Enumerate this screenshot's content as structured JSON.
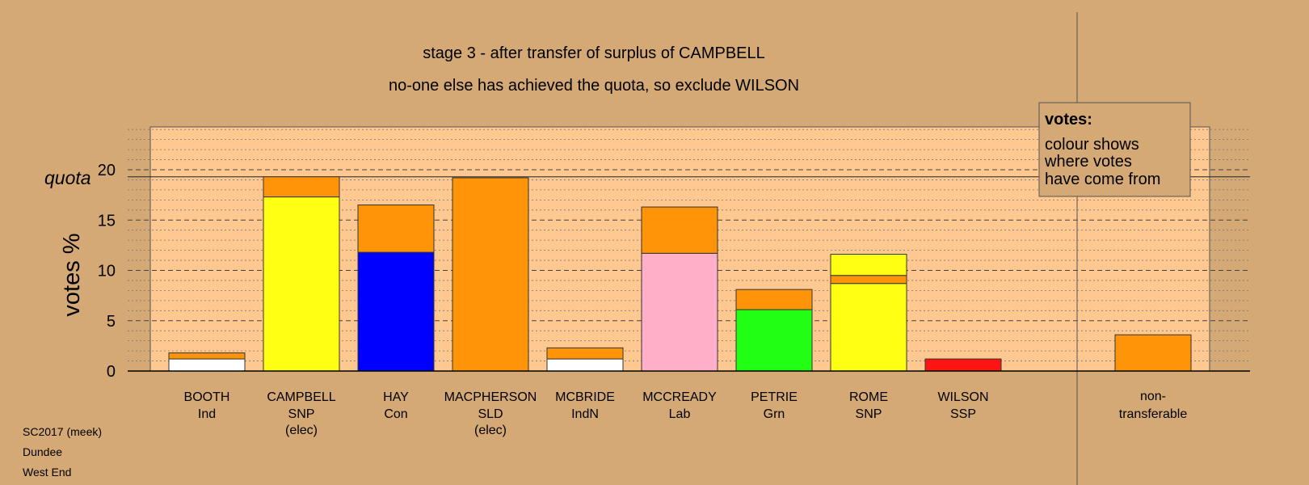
{
  "chart_data": {
    "type": "bar",
    "stacked": true,
    "title": "stage 3 - after transfer of surplus of CAMPBELL",
    "subtitle": "no-one else has achieved the quota, so exclude WILSON",
    "ylabel": "votes %",
    "quota_label": "quota",
    "quota": 19.3,
    "ylim": [
      0,
      24
    ],
    "yticks": [
      "0",
      "5",
      "10",
      "15",
      "20"
    ],
    "grid": "dashed major every 5, dotted minor every 1",
    "categories": [
      {
        "name": "BOOTH",
        "party": "Ind",
        "note": "",
        "segments": [
          {
            "value": 1.2,
            "color": "#ffffff"
          },
          {
            "value": 0.6,
            "color": "#ff9408"
          }
        ]
      },
      {
        "name": "CAMPBELL",
        "party": "SNP",
        "note": "(elec)",
        "segments": [
          {
            "value": 17.3,
            "color": "#ffff14"
          },
          {
            "value": 2.0,
            "color": "#ff9408"
          }
        ]
      },
      {
        "name": "HAY",
        "party": "Con",
        "note": "",
        "segments": [
          {
            "value": 11.8,
            "color": "#0000ff"
          },
          {
            "value": 4.7,
            "color": "#ff9408"
          }
        ]
      },
      {
        "name": "MACPHERSON",
        "party": "SLD",
        "note": "(elec)",
        "segments": [
          {
            "value": 19.2,
            "color": "#ff9408"
          }
        ]
      },
      {
        "name": "MCBRIDE",
        "party": "IndN",
        "note": "",
        "segments": [
          {
            "value": 1.2,
            "color": "#ffffff"
          },
          {
            "value": 1.1,
            "color": "#ff9408"
          }
        ]
      },
      {
        "name": "MCCREADY",
        "party": "Lab",
        "note": "",
        "segments": [
          {
            "value": 11.7,
            "color": "#ffb0c8"
          },
          {
            "value": 4.6,
            "color": "#ff9408"
          }
        ]
      },
      {
        "name": "PETRIE",
        "party": "Grn",
        "note": "",
        "segments": [
          {
            "value": 6.1,
            "color": "#20ff14"
          },
          {
            "value": 2.0,
            "color": "#ff9408"
          }
        ]
      },
      {
        "name": "ROME",
        "party": "SNP",
        "note": "",
        "segments": [
          {
            "value": 8.7,
            "color": "#ffff14"
          },
          {
            "value": 0.8,
            "color": "#ff9408"
          },
          {
            "value": 2.1,
            "color": "#ffff14"
          }
        ]
      },
      {
        "name": "WILSON",
        "party": "SSP",
        "note": "",
        "segments": [
          {
            "value": 1.2,
            "color": "#ff1414"
          }
        ]
      }
    ],
    "nontransferable": {
      "label_line1": "non-",
      "label_line2": "transferable",
      "value": 3.6,
      "color": "#ff9408"
    },
    "legend": {
      "title": "votes:",
      "lines": [
        "colour shows",
        "where votes",
        "have come from"
      ],
      "position": "top-right"
    }
  },
  "footer": {
    "line1": "SC2017 (meek)",
    "line2": "Dundee",
    "line3": "West End"
  },
  "colors": {
    "background": "#d4a976",
    "plot_area": "#ffc890"
  }
}
